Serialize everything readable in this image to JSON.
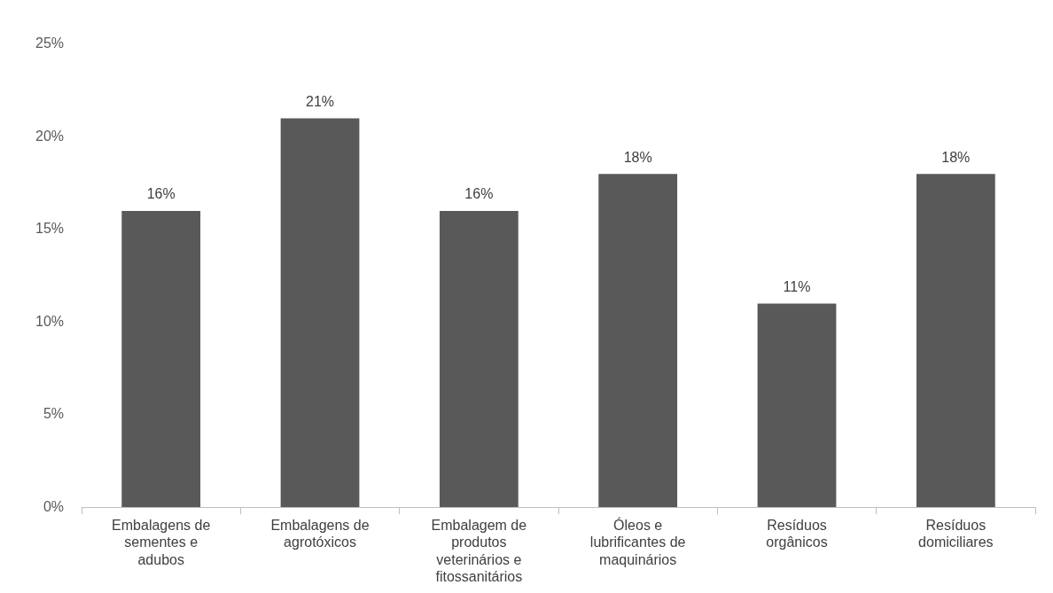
{
  "chart_data": {
    "type": "bar",
    "categories": [
      "Embalagens de sementes e adubos",
      "Embalagens de agrotóxicos",
      "Embalagem de produtos veterinários e fitossanitários",
      "Óleos e lubrificantes de maquinários",
      "Resíduos orgânicos",
      "Resíduos domiciliares"
    ],
    "values": [
      16,
      21,
      16,
      18,
      11,
      18
    ],
    "value_labels": [
      "16%",
      "21%",
      "16%",
      "18%",
      "11%",
      "18%"
    ],
    "color": "#595959",
    "ylim": [
      0,
      25
    ],
    "yticks": [
      {
        "value": 0,
        "label": "0%"
      },
      {
        "value": 5,
        "label": "5%"
      },
      {
        "value": 10,
        "label": "10%"
      },
      {
        "value": 15,
        "label": "15%"
      },
      {
        "value": 20,
        "label": "20%"
      },
      {
        "value": 25,
        "label": "25%"
      }
    ],
    "grid": false,
    "legend": false
  }
}
